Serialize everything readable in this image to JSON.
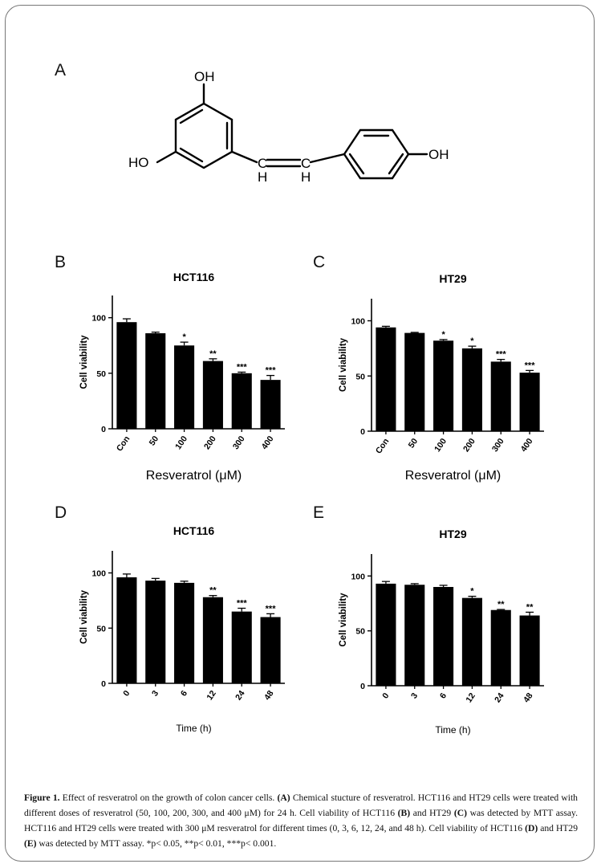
{
  "panels": {
    "A": "A",
    "B": "B",
    "C": "C",
    "D": "D",
    "E": "E"
  },
  "structure": {
    "labels": {
      "oh_top": "OH",
      "ho_left": "HO",
      "oh_right": "OH",
      "c1": "C",
      "c2": "C",
      "h1": "H",
      "h2": "H"
    }
  },
  "chart_data": [
    {
      "panel": "B",
      "type": "bar",
      "title": "HCT116",
      "xlabel": "Resveratrol (μM)",
      "ylabel": "Cell viability",
      "categories": [
        "Con",
        "50",
        "100",
        "200",
        "300",
        "400"
      ],
      "values": [
        96,
        86,
        75,
        61,
        50,
        44
      ],
      "errors": [
        3,
        1,
        3,
        2,
        1,
        4
      ],
      "significance": [
        "",
        "",
        "*",
        "**",
        "***",
        "***"
      ],
      "yticks": [
        0,
        50,
        100
      ],
      "ylim": [
        0,
        120
      ]
    },
    {
      "panel": "C",
      "type": "bar",
      "title": "HT29",
      "xlabel": "Resveratrol (μM)",
      "ylabel": "Cell viability",
      "categories": [
        "Con",
        "50",
        "100",
        "200",
        "300",
        "400"
      ],
      "values": [
        94,
        89,
        82,
        75,
        63,
        53
      ],
      "errors": [
        1,
        0.5,
        1,
        2,
        2,
        2
      ],
      "significance": [
        "",
        "",
        "*",
        "*",
        "***",
        "***"
      ],
      "yticks": [
        0,
        50,
        100
      ],
      "ylim": [
        0,
        120
      ]
    },
    {
      "panel": "D",
      "type": "bar",
      "title": "HCT116",
      "xlabel": "Time (h)",
      "ylabel": "Cell viability",
      "categories": [
        "0",
        "3",
        "6",
        "12",
        "24",
        "48"
      ],
      "values": [
        96,
        93,
        91,
        78,
        65,
        60
      ],
      "errors": [
        3,
        2,
        1.5,
        1.5,
        3,
        3
      ],
      "significance": [
        "",
        "",
        "",
        "**",
        "***",
        "***"
      ],
      "yticks": [
        0,
        50,
        100
      ],
      "ylim": [
        0,
        120
      ]
    },
    {
      "panel": "E",
      "type": "bar",
      "title": "HT29",
      "xlabel": "Time (h)",
      "ylabel": "Cell viability",
      "categories": [
        "0",
        "3",
        "6",
        "12",
        "24",
        "48"
      ],
      "values": [
        93,
        92,
        90,
        80,
        69,
        64
      ],
      "errors": [
        2,
        1,
        1.5,
        1.5,
        0.5,
        3
      ],
      "significance": [
        "",
        "",
        "",
        "*",
        "**",
        "**"
      ],
      "yticks": [
        0,
        50,
        100
      ],
      "ylim": [
        0,
        120
      ]
    }
  ],
  "caption": {
    "fig_label": "Figure 1.",
    "t1": " Effect of resveratrol on the growth of colon cancer cells. ",
    "lA": "(A)",
    "t2": " Chemical stucture of resveratrol. HCT116 and HT29 cells were treated with different doses of resveratrol (50, 100, 200, 300, and 400 μM) for 24 h. Cell viability of HCT116 ",
    "lB": "(B)",
    "t3": " and HT29 ",
    "lC": "(C)",
    "t4": " was detected by MTT assay. HCT116 and HT29 cells were treated with 300 μM resveratrol for different times (0, 3, 6, 12, 24, and 48 h). Cell viability of HCT116 ",
    "lD": "(D)",
    "t5": " and HT29 ",
    "lE": "(E)",
    "t6": " was detected by MTT assay. *p< 0.05, **p< 0.01, ***p< 0.001."
  }
}
